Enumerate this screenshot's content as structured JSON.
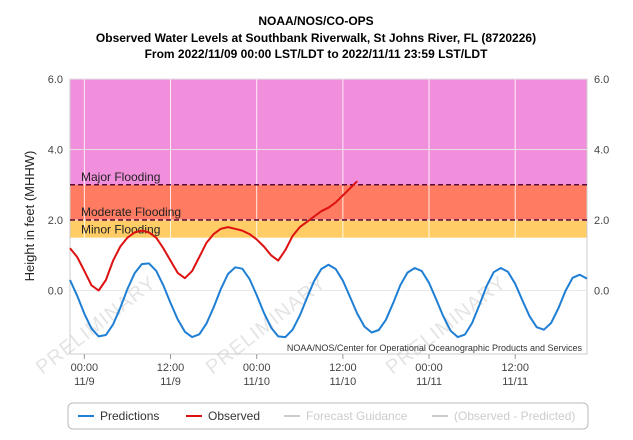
{
  "chart_data": {
    "type": "line",
    "title": "NOAA/NOS/CO-OPS",
    "subtitle": "Observed Water Levels at Southbank Riverwalk, St Johns River, FL (8720226)",
    "date_range": "From 2022/11/09 00:00 LST/LDT to 2022/11/11 23:59 LST/LDT",
    "ylabel": "Height in feet (MHHW)",
    "ylim": [
      -1.8,
      6.0
    ],
    "xlim_hours": [
      -2,
      70
    ],
    "y_ticks": [
      "6.0",
      "4.0",
      "2.0",
      "0.0"
    ],
    "y_tick_values": [
      6.0,
      4.0,
      2.0,
      0.0
    ],
    "x_ticks": [
      {
        "hour": 0,
        "time": "00:00",
        "date": "11/9"
      },
      {
        "hour": 12,
        "time": "12:00",
        "date": "11/9"
      },
      {
        "hour": 24,
        "time": "00:00",
        "date": "11/10"
      },
      {
        "hour": 36,
        "time": "12:00",
        "date": "11/10"
      },
      {
        "hour": 48,
        "time": "00:00",
        "date": "11/11"
      },
      {
        "hour": 60,
        "time": "12:00",
        "date": "11/11"
      }
    ],
    "flood_bands": [
      {
        "label": "Major Flooding",
        "from": 3.0,
        "to": 6.0,
        "color": "#f28fdc"
      },
      {
        "label": "Moderate Flooding",
        "from": 2.0,
        "to": 3.0,
        "color": "#ff7b61"
      },
      {
        "label": "Minor Flooding",
        "from": 1.5,
        "to": 2.0,
        "color": "#ffcc66"
      }
    ],
    "threshold_lines": [
      3.0,
      2.0
    ],
    "grid": true,
    "legend_position": "bottom",
    "watermark": "PRELIMINARY",
    "credit": "NOAA/NOS/Center for Operational Oceanographic Products and Services",
    "series": [
      {
        "name": "Predictions",
        "color": "#1f7fd4",
        "x": [
          -2,
          -1,
          0,
          1,
          2,
          3,
          4,
          5,
          6,
          7,
          8,
          9,
          10,
          11,
          12,
          13,
          14,
          15,
          16,
          17,
          18,
          19,
          20,
          21,
          22,
          23,
          24,
          25,
          26,
          27,
          28,
          29,
          30,
          31,
          32,
          33,
          34,
          35,
          36,
          37,
          38,
          39,
          40,
          41,
          42,
          43,
          44,
          45,
          46,
          47,
          48,
          49,
          50,
          51,
          52,
          53,
          54,
          55,
          56,
          57,
          58,
          59,
          60,
          61,
          62,
          63,
          64,
          65,
          66,
          67,
          68,
          69,
          70
        ],
        "y": [
          0.3,
          -0.15,
          -0.66,
          -1.08,
          -1.3,
          -1.26,
          -0.96,
          -0.49,
          0.04,
          0.49,
          0.75,
          0.77,
          0.56,
          0.15,
          -0.35,
          -0.82,
          -1.17,
          -1.32,
          -1.24,
          -0.94,
          -0.48,
          0.04,
          0.47,
          0.66,
          0.62,
          0.33,
          -0.13,
          -0.63,
          -1.05,
          -1.3,
          -1.32,
          -1.11,
          -0.71,
          -0.21,
          0.27,
          0.61,
          0.73,
          0.61,
          0.28,
          -0.18,
          -0.65,
          -1.02,
          -1.19,
          -1.12,
          -0.83,
          -0.36,
          0.15,
          0.51,
          0.64,
          0.55,
          0.22,
          -0.25,
          -0.74,
          -1.14,
          -1.32,
          -1.25,
          -0.92,
          -0.42,
          0.12,
          0.52,
          0.64,
          0.53,
          0.19,
          -0.28,
          -0.73,
          -1.04,
          -1.11,
          -0.92,
          -0.51,
          -0.01,
          0.36,
          0.45,
          0.34
        ]
      },
      {
        "name": "Observed",
        "color": "#dd1111",
        "x": [
          -2,
          -1,
          0,
          1,
          2,
          3,
          4,
          5,
          6,
          7,
          8,
          9,
          10,
          11,
          12,
          13,
          14,
          15,
          16,
          17,
          18,
          19,
          20,
          21,
          22,
          23,
          24,
          25,
          26,
          27,
          28,
          29,
          30,
          31,
          32,
          33,
          34,
          35,
          36,
          37,
          38
        ],
        "y": [
          1.2,
          0.95,
          0.55,
          0.15,
          0.0,
          0.3,
          0.85,
          1.25,
          1.5,
          1.65,
          1.7,
          1.65,
          1.5,
          1.2,
          0.85,
          0.5,
          0.35,
          0.55,
          0.95,
          1.35,
          1.6,
          1.75,
          1.8,
          1.75,
          1.7,
          1.6,
          1.45,
          1.25,
          1.0,
          0.85,
          1.15,
          1.55,
          1.8,
          1.95,
          2.1,
          2.25,
          2.35,
          2.5,
          2.7,
          2.9,
          3.1
        ]
      },
      {
        "name": "Forecast Guidance",
        "color": "#cccccc",
        "hidden": true,
        "x": [],
        "y": []
      },
      {
        "name": "(Observed - Predicted)",
        "color": "#cccccc",
        "hidden": true,
        "x": [],
        "y": []
      }
    ]
  }
}
